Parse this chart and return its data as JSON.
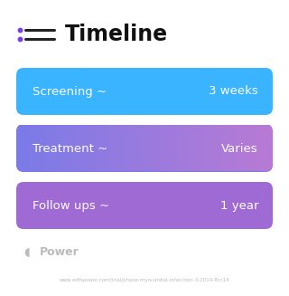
{
  "title": "Timeline",
  "background_color": "#ffffff",
  "rows": [
    {
      "left_label": "Screening ~",
      "right_label": "3 weeks",
      "color_left": "#3ab4ff",
      "color_right": "#4488ff"
    },
    {
      "left_label": "Treatment ~",
      "right_label": "Varies",
      "color_left": "#7b7be8",
      "color_right": "#b87ad4"
    },
    {
      "left_label": "Follow ups ~",
      "right_label": "1 year",
      "color_left": "#a06ad4",
      "color_right": "#cc72b8"
    }
  ],
  "footer_text": "Power",
  "url_text": "www.withpower.com/trial/phase-myocardial-infarction-3-2014-8cc14",
  "title_color": "#111111",
  "icon_dot_color": "#7c3aed",
  "icon_line_color": "#222222",
  "footer_color": "#bbbbbb",
  "url_color": "#bbbbbb",
  "label_color": "#ffffff",
  "title_fontsize": 17,
  "label_fontsize": 9.5
}
